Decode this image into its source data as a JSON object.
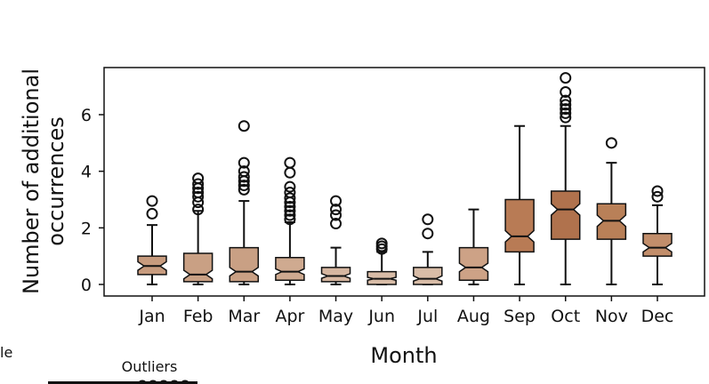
{
  "chart_data": {
    "type": "box",
    "xlabel": "Month",
    "ylabel": [
      "Number of additional",
      "occurrences"
    ],
    "ylim": [
      -0.5,
      7.6
    ],
    "yticks": [
      0,
      2,
      4,
      6
    ],
    "grid": false,
    "categories": [
      "Jan",
      "Feb",
      "Mar",
      "Apr",
      "May",
      "Jun",
      "Jul",
      "Aug",
      "Sep",
      "Oct",
      "Nov",
      "Dec"
    ],
    "box_colors": [
      "#c79b7e",
      "#c9a084",
      "#c9a084",
      "#cfaa90",
      "#d6b6a0",
      "#d8bca7",
      "#d8bca7",
      "#cda286",
      "#b87b55",
      "#b0724d",
      "#b98058",
      "#c28e6b"
    ],
    "boxes": [
      {
        "whisker_low": 0.0,
        "q1": 0.35,
        "median": 0.65,
        "q3": 1.0,
        "whisker_high": 2.1,
        "notch_low": 0.5,
        "notch_high": 0.8,
        "outliers": [
          2.5,
          2.95
        ]
      },
      {
        "whisker_low": 0.0,
        "q1": 0.1,
        "median": 0.35,
        "q3": 1.1,
        "whisker_high": 2.6,
        "notch_low": 0.2,
        "notch_high": 0.5,
        "outliers": [
          2.65,
          2.9,
          3.1,
          3.25,
          3.4,
          3.55,
          3.75
        ]
      },
      {
        "whisker_low": 0.0,
        "q1": 0.1,
        "median": 0.45,
        "q3": 1.3,
        "whisker_high": 2.95,
        "notch_low": 0.3,
        "notch_high": 0.6,
        "outliers": [
          3.35,
          3.5,
          3.65,
          3.8,
          4.0,
          4.3,
          5.6
        ]
      },
      {
        "whisker_low": 0.0,
        "q1": 0.15,
        "median": 0.45,
        "q3": 0.95,
        "whisker_high": 2.2,
        "notch_low": 0.35,
        "notch_high": 0.55,
        "outliers": [
          2.3,
          2.45,
          2.6,
          2.75,
          2.9,
          3.05,
          3.25,
          3.45,
          3.95,
          4.3
        ]
      },
      {
        "whisker_low": 0.0,
        "q1": 0.1,
        "median": 0.3,
        "q3": 0.6,
        "whisker_high": 1.3,
        "notch_low": 0.22,
        "notch_high": 0.38,
        "outliers": [
          2.15,
          2.45,
          2.65,
          2.95
        ]
      },
      {
        "whisker_low": 0.0,
        "q1": 0.0,
        "median": 0.2,
        "q3": 0.45,
        "whisker_high": 1.15,
        "notch_low": 0.15,
        "notch_high": 0.25,
        "outliers": [
          1.25,
          1.35,
          1.45
        ]
      },
      {
        "whisker_low": 0.0,
        "q1": 0.0,
        "median": 0.2,
        "q3": 0.6,
        "whisker_high": 1.15,
        "notch_low": 0.12,
        "notch_high": 0.3,
        "outliers": [
          1.8,
          2.3
        ]
      },
      {
        "whisker_low": 0.0,
        "q1": 0.15,
        "median": 0.6,
        "q3": 1.3,
        "whisker_high": 2.65,
        "notch_low": 0.45,
        "notch_high": 0.75,
        "outliers": []
      },
      {
        "whisker_low": 0.0,
        "q1": 1.15,
        "median": 1.7,
        "q3": 3.0,
        "whisker_high": 5.6,
        "notch_low": 1.5,
        "notch_high": 1.9,
        "outliers": []
      },
      {
        "whisker_low": 0.0,
        "q1": 1.6,
        "median": 2.65,
        "q3": 3.3,
        "whisker_high": 5.6,
        "notch_low": 2.45,
        "notch_high": 2.85,
        "outliers": [
          5.9,
          6.05,
          6.2,
          6.35,
          6.5,
          6.8,
          7.3
        ]
      },
      {
        "whisker_low": 0.0,
        "q1": 1.6,
        "median": 2.25,
        "q3": 2.85,
        "whisker_high": 4.3,
        "notch_low": 2.05,
        "notch_high": 2.45,
        "outliers": [
          5.0
        ]
      },
      {
        "whisker_low": 0.0,
        "q1": 1.0,
        "median": 1.3,
        "q3": 1.8,
        "whisker_high": 2.8,
        "notch_low": 1.15,
        "notch_high": 1.45,
        "outliers": [
          3.1,
          3.3
        ]
      }
    ],
    "legend": {
      "left_fragment": "le",
      "outliers_label": "Outliers"
    }
  }
}
